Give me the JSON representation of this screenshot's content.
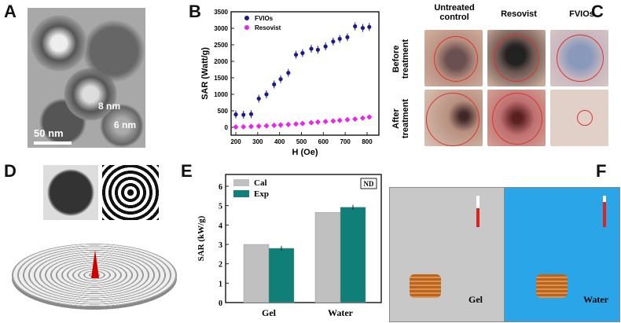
{
  "panels": {
    "a": "A",
    "b": "B",
    "c": "C",
    "d": "D",
    "e": "E",
    "f": "F"
  },
  "panel_a": {
    "label_8nm": "8 nm",
    "label_6nm": "6 nm",
    "scale_bar": "50 nm"
  },
  "panel_c": {
    "col_untreated": "Untreated control",
    "col_resovist": "Resovist",
    "col_fvios": "FVIOs",
    "row_before": "Before treatment",
    "row_after": "After treatment"
  },
  "panel_f": {
    "gel": "Gel",
    "water": "Water",
    "colors": {
      "gel_bg": "#c8c8c8",
      "water_bg": "#2aa6e8",
      "field_lines": "#4cd04c",
      "coil": "#b8651e"
    }
  },
  "chart_data": [
    {
      "type": "scatter",
      "xlabel": "H (Oe)",
      "ylabel": "SAR (Watt/g)",
      "xlim": [
        180,
        830
      ],
      "ylim": [
        -150,
        3500
      ],
      "xticks": [
        "200",
        "300",
        "400",
        "500",
        "600",
        "700",
        "800"
      ],
      "yticks": [
        "0",
        "500",
        "1000",
        "1500",
        "2000",
        "2500",
        "3000",
        "3500"
      ],
      "legend": "top-left",
      "x": [
        200,
        235,
        270,
        305,
        340,
        375,
        405,
        440,
        475,
        505,
        545,
        575,
        610,
        645,
        675,
        710,
        745,
        780,
        810
      ],
      "series": [
        {
          "name": "FVIOs",
          "color": "#1a1a8c",
          "values": [
            390,
            380,
            400,
            870,
            1000,
            1300,
            1460,
            1650,
            2200,
            2250,
            2380,
            2350,
            2450,
            2600,
            2680,
            2730,
            3060,
            3010,
            3040
          ]
        },
        {
          "name": "Resovist",
          "color": "#ee22ee",
          "values": [
            10,
            15,
            25,
            35,
            45,
            60,
            70,
            85,
            100,
            115,
            140,
            160,
            175,
            190,
            210,
            230,
            250,
            280,
            310
          ]
        }
      ]
    },
    {
      "type": "bar",
      "ylabel": "SAR (kW/g)",
      "ylim": [
        0,
        6.5
      ],
      "yticks": [
        "0",
        "1",
        "2",
        "3",
        "4",
        "5",
        "6"
      ],
      "categories": [
        "Gel",
        "Water"
      ],
      "legend": "top-left",
      "badge": "ND",
      "series": [
        {
          "name": "Cal",
          "color": "#c0c0c0",
          "values": [
            3.0,
            4.65
          ]
        },
        {
          "name": "Exp",
          "color": "#0f7f78",
          "values": [
            2.8,
            4.92
          ]
        }
      ]
    }
  ]
}
